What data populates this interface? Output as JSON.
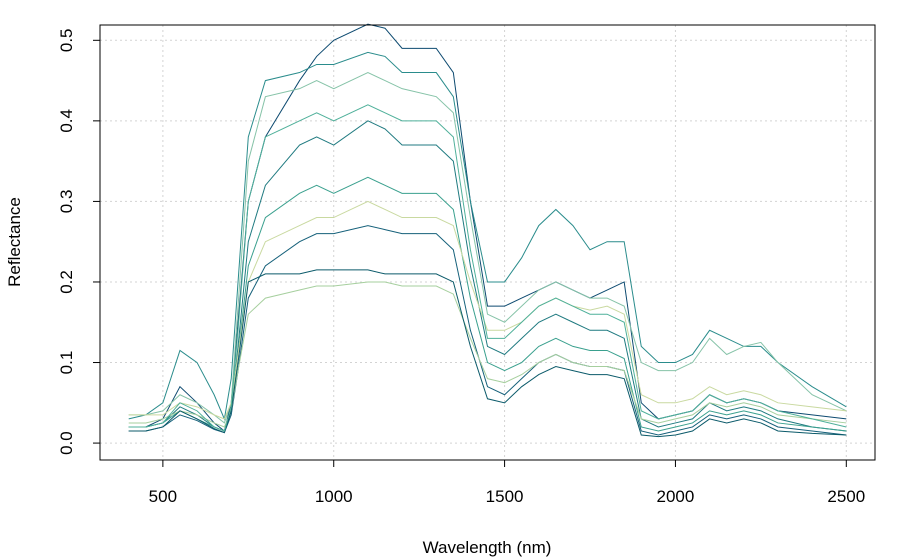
{
  "chart_data": {
    "type": "line",
    "xlabel": "Wavelength (nm)",
    "ylabel": "Reflectance",
    "x": [
      400,
      450,
      500,
      550,
      600,
      650,
      680,
      700,
      720,
      750,
      800,
      900,
      950,
      1000,
      1100,
      1150,
      1200,
      1300,
      1350,
      1400,
      1450,
      1500,
      1550,
      1600,
      1650,
      1700,
      1750,
      1800,
      1850,
      1900,
      1950,
      2000,
      2050,
      2100,
      2150,
      2200,
      2250,
      2300,
      2400,
      2500
    ],
    "xlim": [
      316,
      2584
    ],
    "xticks": [
      500,
      1000,
      1500,
      2000,
      2500
    ],
    "ylim": [
      -0.021,
      0.519
    ],
    "yticks": [
      {
        "value": 0,
        "label": "0.0"
      },
      0.1,
      0.2,
      0.3,
      0.4,
      0.5
    ],
    "grid": true,
    "series": [
      {
        "color": "#0d4a70",
        "values": [
          0.02,
          0.02,
          0.03,
          0.07,
          0.05,
          0.025,
          0.015,
          0.05,
          0.15,
          0.3,
          0.38,
          0.45,
          0.48,
          0.5,
          0.52,
          0.515,
          0.49,
          0.49,
          0.46,
          0.3,
          0.17,
          0.17,
          0.18,
          0.19,
          0.2,
          0.19,
          0.18,
          0.19,
          0.2,
          0.05,
          0.03,
          0.035,
          0.04,
          0.06,
          0.05,
          0.055,
          0.05,
          0.04,
          0.035,
          0.03
        ]
      },
      {
        "color": "#2a8c8c",
        "values": [
          0.03,
          0.035,
          0.05,
          0.115,
          0.1,
          0.06,
          0.03,
          0.08,
          0.2,
          0.38,
          0.45,
          0.46,
          0.47,
          0.47,
          0.485,
          0.48,
          0.46,
          0.46,
          0.43,
          0.3,
          0.2,
          0.2,
          0.23,
          0.27,
          0.29,
          0.27,
          0.24,
          0.25,
          0.25,
          0.12,
          0.1,
          0.1,
          0.11,
          0.14,
          0.13,
          0.12,
          0.12,
          0.1,
          0.07,
          0.045
        ]
      },
      {
        "color": "#86c3a8",
        "values": [
          0.035,
          0.035,
          0.04,
          0.06,
          0.05,
          0.035,
          0.025,
          0.05,
          0.17,
          0.35,
          0.43,
          0.44,
          0.45,
          0.44,
          0.46,
          0.45,
          0.44,
          0.43,
          0.41,
          0.28,
          0.16,
          0.15,
          0.17,
          0.19,
          0.2,
          0.19,
          0.18,
          0.18,
          0.17,
          0.1,
          0.09,
          0.09,
          0.1,
          0.13,
          0.11,
          0.12,
          0.125,
          0.1,
          0.06,
          0.04
        ]
      },
      {
        "color": "#1f7a80",
        "values": [
          0.02,
          0.02,
          0.025,
          0.045,
          0.035,
          0.02,
          0.015,
          0.04,
          0.12,
          0.25,
          0.32,
          0.37,
          0.38,
          0.37,
          0.4,
          0.39,
          0.37,
          0.37,
          0.35,
          0.22,
          0.12,
          0.11,
          0.13,
          0.15,
          0.16,
          0.15,
          0.14,
          0.14,
          0.13,
          0.03,
          0.02,
          0.025,
          0.03,
          0.05,
          0.04,
          0.045,
          0.04,
          0.03,
          0.02,
          0.015
        ]
      },
      {
        "color": "#3aa08e",
        "values": [
          0.02,
          0.02,
          0.025,
          0.04,
          0.03,
          0.02,
          0.015,
          0.04,
          0.11,
          0.22,
          0.28,
          0.31,
          0.32,
          0.31,
          0.33,
          0.32,
          0.31,
          0.31,
          0.29,
          0.18,
          0.1,
          0.09,
          0.1,
          0.12,
          0.13,
          0.12,
          0.115,
          0.115,
          0.105,
          0.02,
          0.015,
          0.02,
          0.025,
          0.04,
          0.035,
          0.04,
          0.035,
          0.025,
          0.02,
          0.015
        ]
      },
      {
        "color": "#c9d9a0",
        "values": [
          0.035,
          0.035,
          0.035,
          0.05,
          0.045,
          0.035,
          0.03,
          0.05,
          0.11,
          0.2,
          0.25,
          0.27,
          0.28,
          0.28,
          0.3,
          0.29,
          0.28,
          0.28,
          0.27,
          0.2,
          0.14,
          0.14,
          0.15,
          0.17,
          0.18,
          0.17,
          0.165,
          0.17,
          0.16,
          0.06,
          0.05,
          0.05,
          0.055,
          0.07,
          0.06,
          0.065,
          0.06,
          0.05,
          0.045,
          0.04
        ]
      },
      {
        "color": "#15607a",
        "values": [
          0.015,
          0.015,
          0.02,
          0.035,
          0.028,
          0.017,
          0.013,
          0.035,
          0.09,
          0.18,
          0.22,
          0.25,
          0.26,
          0.26,
          0.27,
          0.265,
          0.26,
          0.26,
          0.24,
          0.14,
          0.07,
          0.06,
          0.08,
          0.1,
          0.11,
          0.1,
          0.095,
          0.095,
          0.09,
          0.015,
          0.01,
          0.015,
          0.02,
          0.035,
          0.03,
          0.035,
          0.03,
          0.02,
          0.015,
          0.01
        ]
      },
      {
        "color": "#a6cf9e",
        "values": [
          0.025,
          0.025,
          0.03,
          0.04,
          0.035,
          0.025,
          0.02,
          0.04,
          0.09,
          0.16,
          0.18,
          0.19,
          0.195,
          0.195,
          0.2,
          0.2,
          0.195,
          0.195,
          0.185,
          0.13,
          0.08,
          0.075,
          0.085,
          0.1,
          0.11,
          0.1,
          0.095,
          0.095,
          0.09,
          0.03,
          0.025,
          0.03,
          0.035,
          0.05,
          0.045,
          0.05,
          0.045,
          0.035,
          0.03,
          0.025
        ]
      },
      {
        "color": "#0b5a6a",
        "values": [
          0.015,
          0.015,
          0.02,
          0.04,
          0.03,
          0.018,
          0.013,
          0.04,
          0.1,
          0.2,
          0.21,
          0.21,
          0.215,
          0.215,
          0.215,
          0.21,
          0.21,
          0.21,
          0.2,
          0.12,
          0.055,
          0.05,
          0.07,
          0.085,
          0.095,
          0.09,
          0.085,
          0.085,
          0.08,
          0.01,
          0.008,
          0.01,
          0.015,
          0.03,
          0.025,
          0.03,
          0.025,
          0.015,
          0.012,
          0.01
        ]
      },
      {
        "color": "#4fb09a",
        "values": [
          0.02,
          0.02,
          0.025,
          0.05,
          0.04,
          0.02,
          0.015,
          0.045,
          0.14,
          0.3,
          0.38,
          0.4,
          0.41,
          0.4,
          0.42,
          0.41,
          0.4,
          0.4,
          0.38,
          0.24,
          0.13,
          0.13,
          0.15,
          0.17,
          0.18,
          0.17,
          0.16,
          0.16,
          0.15,
          0.04,
          0.03,
          0.035,
          0.04,
          0.06,
          0.05,
          0.055,
          0.05,
          0.04,
          0.03,
          0.02
        ]
      }
    ]
  }
}
